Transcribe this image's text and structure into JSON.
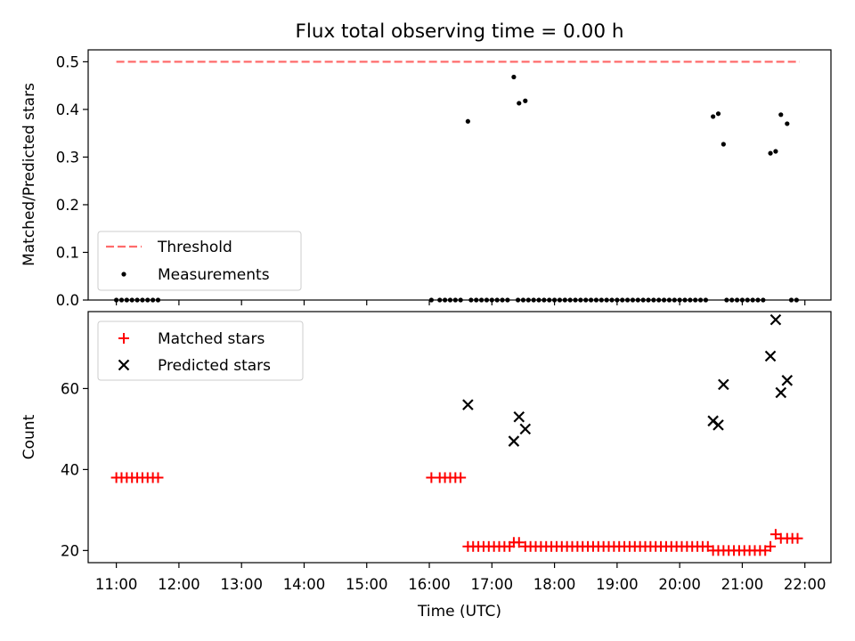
{
  "title": "Flux total observing time = 0.00 h",
  "chart_data": [
    {
      "type": "scatter",
      "panel": "top",
      "ylabel": "Matched/Predicted stars",
      "ylim": [
        0,
        0.525
      ],
      "yticks": [
        0.0,
        0.1,
        0.2,
        0.3,
        0.4,
        0.5
      ],
      "ytick_labels": [
        "0.0",
        "0.1",
        "0.2",
        "0.3",
        "0.4",
        "0.5"
      ],
      "x_shared_with": "bottom",
      "threshold": {
        "name": "Threshold",
        "value": 0.5,
        "x": [
          "11:00",
          "21:55"
        ],
        "color": "#ff6b6b",
        "style": "dashed"
      },
      "series": [
        {
          "name": "Measurements",
          "color": "#000000",
          "marker": "dot",
          "points": [
            [
              "11:00",
              0
            ],
            [
              "11:05",
              0
            ],
            [
              "11:10",
              0
            ],
            [
              "11:15",
              0
            ],
            [
              "11:20",
              0
            ],
            [
              "11:25",
              0
            ],
            [
              "11:30",
              0
            ],
            [
              "11:35",
              0
            ],
            [
              "11:40",
              0
            ],
            [
              "16:02",
              0
            ],
            [
              "16:10",
              0
            ],
            [
              "16:15",
              0
            ],
            [
              "16:20",
              0
            ],
            [
              "16:25",
              0
            ],
            [
              "16:30",
              0
            ],
            [
              "16:37",
              0.375
            ],
            [
              "16:40",
              0
            ],
            [
              "16:45",
              0
            ],
            [
              "16:50",
              0
            ],
            [
              "16:55",
              0
            ],
            [
              "17:00",
              0
            ],
            [
              "17:05",
              0
            ],
            [
              "17:10",
              0
            ],
            [
              "17:15",
              0
            ],
            [
              "17:21",
              0.468
            ],
            [
              "17:26",
              0.413
            ],
            [
              "17:32",
              0.418
            ],
            [
              "17:25",
              0
            ],
            [
              "17:30",
              0
            ],
            [
              "17:35",
              0
            ],
            [
              "17:40",
              0
            ],
            [
              "17:45",
              0
            ],
            [
              "17:50",
              0
            ],
            [
              "17:55",
              0
            ],
            [
              "18:00",
              0
            ],
            [
              "18:05",
              0
            ],
            [
              "18:10",
              0
            ],
            [
              "18:15",
              0
            ],
            [
              "18:20",
              0
            ],
            [
              "18:25",
              0
            ],
            [
              "18:30",
              0
            ],
            [
              "18:35",
              0
            ],
            [
              "18:40",
              0
            ],
            [
              "18:45",
              0
            ],
            [
              "18:50",
              0
            ],
            [
              "18:55",
              0
            ],
            [
              "19:00",
              0
            ],
            [
              "19:05",
              0
            ],
            [
              "19:10",
              0
            ],
            [
              "19:15",
              0
            ],
            [
              "19:20",
              0
            ],
            [
              "19:25",
              0
            ],
            [
              "19:30",
              0
            ],
            [
              "19:35",
              0
            ],
            [
              "19:40",
              0
            ],
            [
              "19:45",
              0
            ],
            [
              "19:50",
              0
            ],
            [
              "19:55",
              0
            ],
            [
              "20:00",
              0
            ],
            [
              "20:05",
              0
            ],
            [
              "20:10",
              0
            ],
            [
              "20:15",
              0
            ],
            [
              "20:20",
              0
            ],
            [
              "20:25",
              0
            ],
            [
              "20:32",
              0.385
            ],
            [
              "20:37",
              0.391
            ],
            [
              "20:42",
              0.327
            ],
            [
              "20:45",
              0
            ],
            [
              "20:50",
              0
            ],
            [
              "20:55",
              0
            ],
            [
              "21:00",
              0
            ],
            [
              "21:05",
              0
            ],
            [
              "21:10",
              0
            ],
            [
              "21:15",
              0
            ],
            [
              "21:20",
              0
            ],
            [
              "21:27",
              0.308
            ],
            [
              "21:32",
              0.312
            ],
            [
              "21:37",
              0.389
            ],
            [
              "21:43",
              0.37
            ],
            [
              "21:47",
              0
            ],
            [
              "21:52",
              0
            ]
          ]
        }
      ],
      "legend": {
        "placement": "lower-left",
        "entries": [
          "Threshold",
          "Measurements"
        ]
      }
    },
    {
      "type": "scatter",
      "panel": "bottom",
      "xlabel": "Time (UTC)",
      "ylabel": "Count",
      "xlim": [
        "10:33",
        "22:25"
      ],
      "xticks": [
        "11:00",
        "12:00",
        "13:00",
        "14:00",
        "15:00",
        "16:00",
        "17:00",
        "18:00",
        "19:00",
        "20:00",
        "21:00",
        "22:00"
      ],
      "ylim": [
        17,
        79
      ],
      "yticks": [
        20,
        40,
        60
      ],
      "ytick_labels": [
        "20",
        "40",
        "60"
      ],
      "series": [
        {
          "name": "Matched stars",
          "color": "#ff0000",
          "marker": "plus",
          "points": [
            [
              "11:00",
              38
            ],
            [
              "11:05",
              38
            ],
            [
              "11:10",
              38
            ],
            [
              "11:15",
              38
            ],
            [
              "11:20",
              38
            ],
            [
              "11:25",
              38
            ],
            [
              "11:30",
              38
            ],
            [
              "11:35",
              38
            ],
            [
              "11:40",
              38
            ],
            [
              "16:02",
              38
            ],
            [
              "16:10",
              38
            ],
            [
              "16:15",
              38
            ],
            [
              "16:20",
              38
            ],
            [
              "16:25",
              38
            ],
            [
              "16:30",
              38
            ],
            [
              "16:37",
              21
            ],
            [
              "16:42",
              21
            ],
            [
              "16:47",
              21
            ],
            [
              "16:52",
              21
            ],
            [
              "16:57",
              21
            ],
            [
              "17:02",
              21
            ],
            [
              "17:07",
              21
            ],
            [
              "17:12",
              21
            ],
            [
              "17:17",
              21
            ],
            [
              "17:21",
              22
            ],
            [
              "17:26",
              22
            ],
            [
              "17:32",
              21
            ],
            [
              "17:37",
              21
            ],
            [
              "17:42",
              21
            ],
            [
              "17:47",
              21
            ],
            [
              "17:52",
              21
            ],
            [
              "17:57",
              21
            ],
            [
              "18:02",
              21
            ],
            [
              "18:07",
              21
            ],
            [
              "18:12",
              21
            ],
            [
              "18:17",
              21
            ],
            [
              "18:22",
              21
            ],
            [
              "18:27",
              21
            ],
            [
              "18:32",
              21
            ],
            [
              "18:37",
              21
            ],
            [
              "18:42",
              21
            ],
            [
              "18:47",
              21
            ],
            [
              "18:52",
              21
            ],
            [
              "18:57",
              21
            ],
            [
              "19:02",
              21
            ],
            [
              "19:07",
              21
            ],
            [
              "19:12",
              21
            ],
            [
              "19:17",
              21
            ],
            [
              "19:22",
              21
            ],
            [
              "19:27",
              21
            ],
            [
              "19:32",
              21
            ],
            [
              "19:37",
              21
            ],
            [
              "19:42",
              21
            ],
            [
              "19:47",
              21
            ],
            [
              "19:52",
              21
            ],
            [
              "19:57",
              21
            ],
            [
              "20:02",
              21
            ],
            [
              "20:07",
              21
            ],
            [
              "20:12",
              21
            ],
            [
              "20:17",
              21
            ],
            [
              "20:22",
              21
            ],
            [
              "20:27",
              21
            ],
            [
              "20:32",
              20
            ],
            [
              "20:37",
              20
            ],
            [
              "20:42",
              20
            ],
            [
              "20:47",
              20
            ],
            [
              "20:52",
              20
            ],
            [
              "20:57",
              20
            ],
            [
              "21:02",
              20
            ],
            [
              "21:07",
              20
            ],
            [
              "21:12",
              20
            ],
            [
              "21:17",
              20
            ],
            [
              "21:22",
              20
            ],
            [
              "21:27",
              21
            ],
            [
              "21:32",
              24
            ],
            [
              "21:37",
              23
            ],
            [
              "21:43",
              23
            ],
            [
              "21:48",
              23
            ],
            [
              "21:53",
              23
            ]
          ]
        },
        {
          "name": "Predicted stars",
          "color": "#000000",
          "marker": "x",
          "points": [
            [
              "16:37",
              56
            ],
            [
              "17:21",
              47
            ],
            [
              "17:26",
              53
            ],
            [
              "17:32",
              50
            ],
            [
              "20:32",
              52
            ],
            [
              "20:37",
              51
            ],
            [
              "20:42",
              61
            ],
            [
              "21:27",
              68
            ],
            [
              "21:32",
              77
            ],
            [
              "21:37",
              59
            ],
            [
              "21:43",
              62
            ]
          ]
        }
      ],
      "legend": {
        "placement": "upper-left",
        "entries": [
          "Matched stars",
          "Predicted stars"
        ]
      }
    }
  ]
}
